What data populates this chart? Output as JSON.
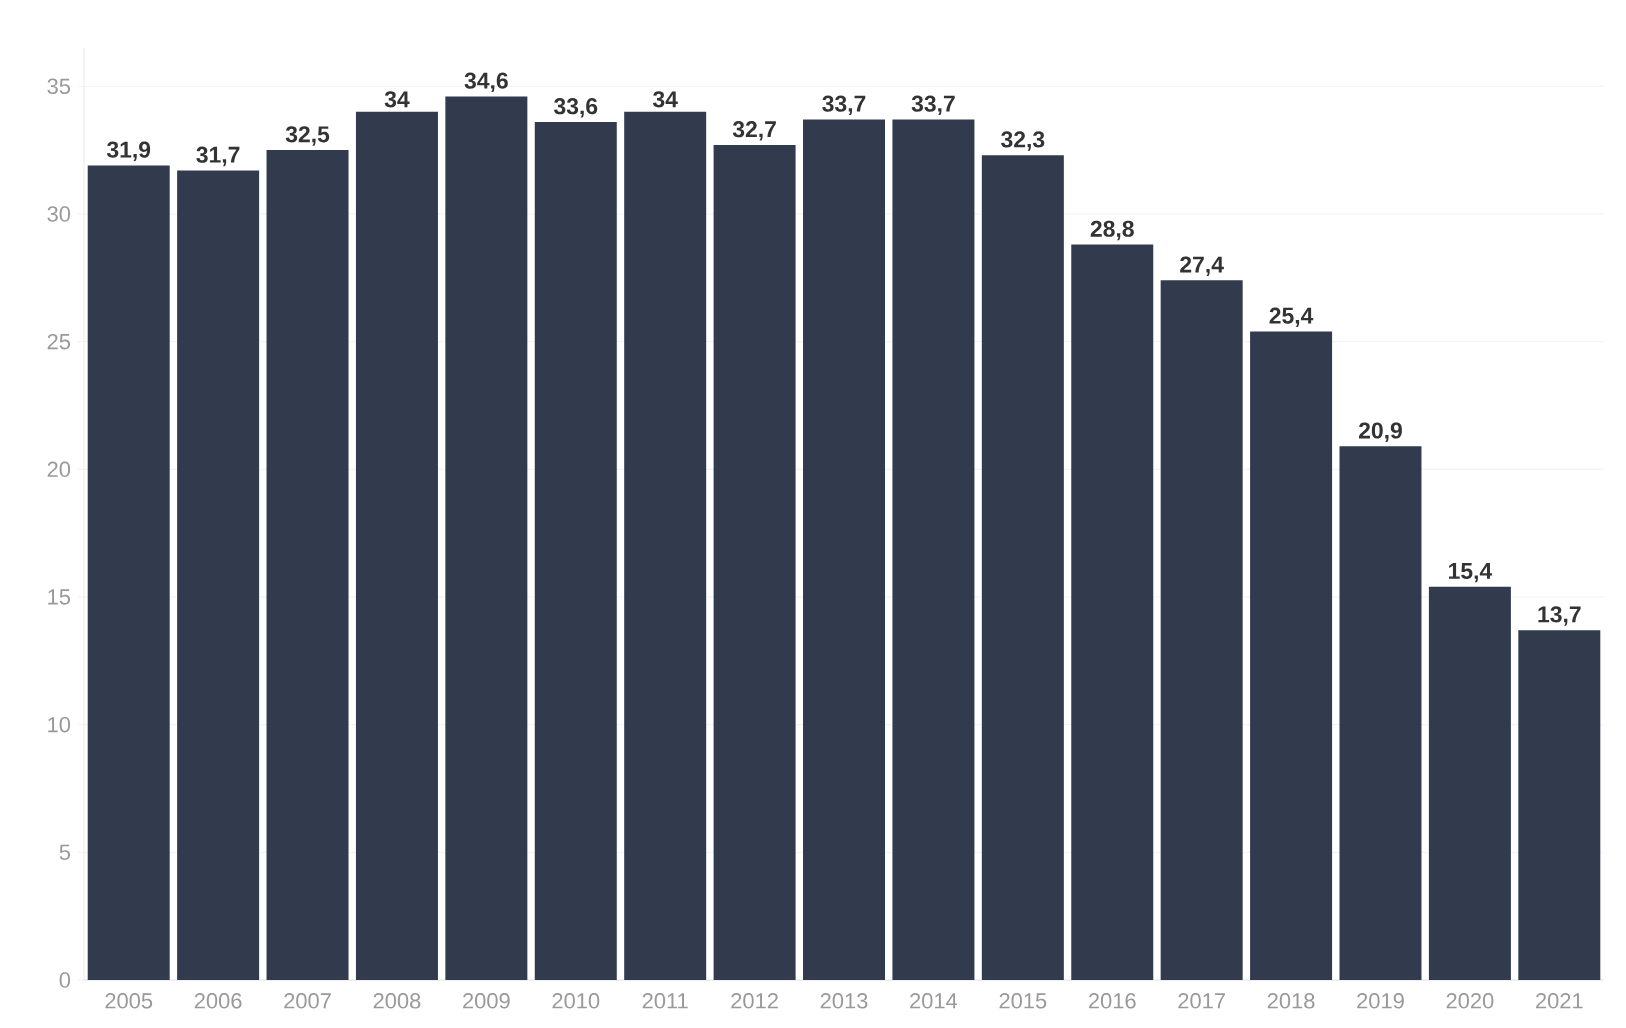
{
  "chart_data": {
    "type": "bar",
    "categories": [
      "2005",
      "2006",
      "2007",
      "2008",
      "2009",
      "2010",
      "2011",
      "2012",
      "2013",
      "2014",
      "2015",
      "2016",
      "2017",
      "2018",
      "2019",
      "2020",
      "2021"
    ],
    "values": [
      31.9,
      31.7,
      32.5,
      34,
      34.6,
      33.6,
      34,
      32.7,
      33.7,
      33.7,
      32.3,
      28.8,
      27.4,
      25.4,
      20.9,
      15.4,
      13.7
    ],
    "value_labels": [
      "31,9",
      "31,7",
      "32,5",
      "34",
      "34,6",
      "33,6",
      "34",
      "32,7",
      "33,7",
      "33,7",
      "32,3",
      "28,8",
      "27,4",
      "25,4",
      "20,9",
      "15,4",
      "13,7"
    ],
    "color": "#323b4d",
    "ylim": [
      0,
      36.5
    ],
    "yticks": [
      0,
      5,
      10,
      15,
      20,
      25,
      30,
      35
    ],
    "grid": "y"
  }
}
